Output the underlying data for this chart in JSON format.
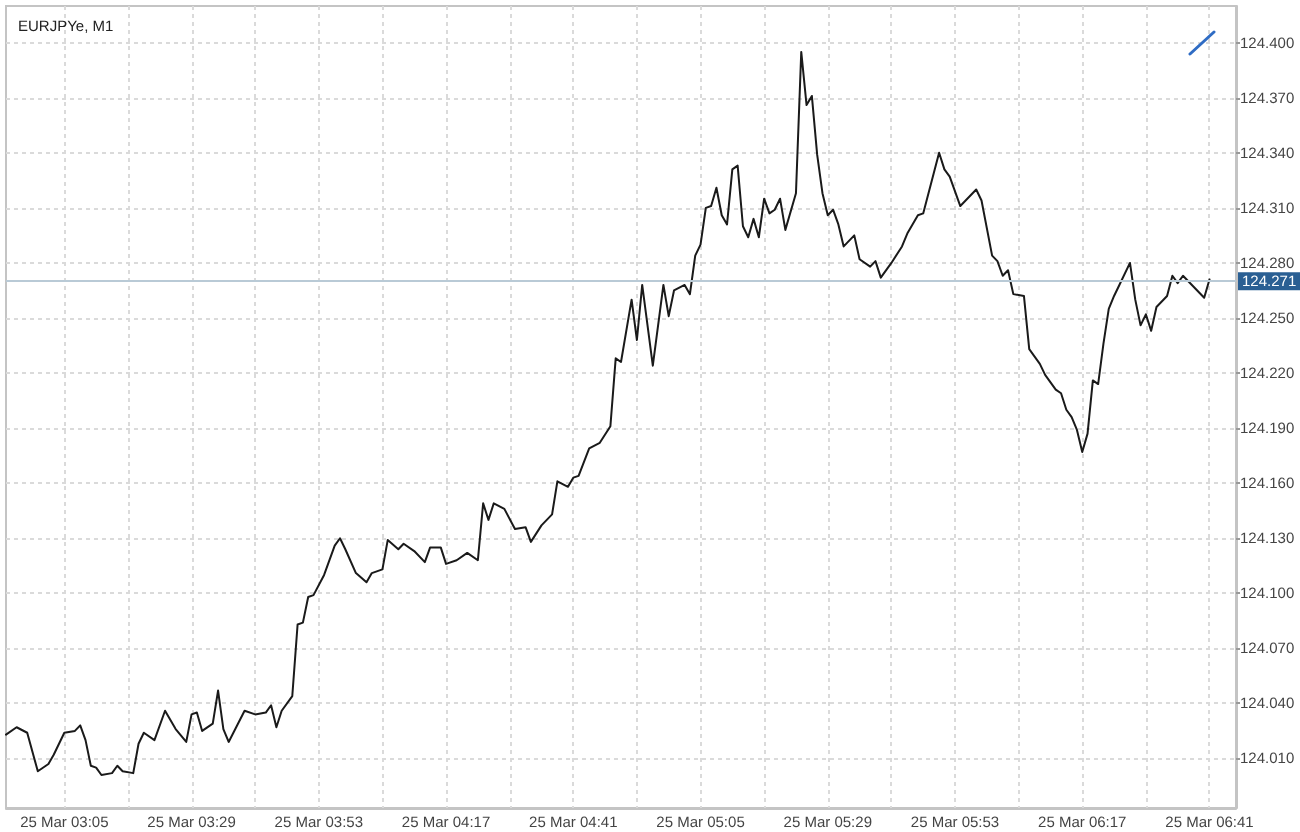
{
  "chart_data": {
    "type": "line",
    "title": "EURJPYe, M1",
    "color": "#1a1a1a",
    "marker": "none",
    "line_style": "solid",
    "grid": true,
    "x": [
      "--03-25T02:54",
      "--03-25T02:56",
      "--03-25T02:58",
      "--03-25T03:00",
      "--03-25T03:02",
      "--03-25T03:03",
      "--03-25T03:05",
      "--03-25T03:07",
      "--03-25T03:08",
      "--03-25T03:09",
      "--03-25T03:10",
      "--03-25T03:11",
      "--03-25T03:12",
      "--03-25T03:14",
      "--03-25T03:15",
      "--03-25T03:16",
      "--03-25T03:18",
      "--03-25T03:19",
      "--03-25T03:20",
      "--03-25T03:22",
      "--03-25T03:24",
      "--03-25T03:26",
      "--03-25T03:28",
      "--03-25T03:29",
      "--03-25T03:30",
      "--03-25T03:31",
      "--03-25T03:33",
      "--03-25T03:34",
      "--03-25T03:35",
      "--03-25T03:36",
      "--03-25T03:39",
      "--03-25T03:41",
      "--03-25T03:43",
      "--03-25T03:44",
      "--03-25T03:45",
      "--03-25T03:46",
      "--03-25T03:48",
      "--03-25T03:49",
      "--03-25T03:50",
      "--03-25T03:51",
      "--03-25T03:52",
      "--03-25T03:54",
      "--03-25T03:56",
      "--03-25T03:57",
      "--03-25T03:58",
      "--03-25T04:00",
      "--03-25T04:02",
      "--03-25T04:03",
      "--03-25T04:05",
      "--03-25T04:06",
      "--03-25T04:08",
      "--03-25T04:09",
      "--03-25T04:11",
      "--03-25T04:13",
      "--03-25T04:14",
      "--03-25T04:16",
      "--03-25T04:17",
      "--03-25T04:19",
      "--03-25T04:21",
      "--03-25T04:23",
      "--03-25T04:24",
      "--03-25T04:25",
      "--03-25T04:26",
      "--03-25T04:28",
      "--03-25T04:30",
      "--03-25T04:32",
      "--03-25T04:33",
      "--03-25T04:35",
      "--03-25T04:37",
      "--03-25T04:38",
      "--03-25T04:40",
      "--03-25T04:41",
      "--03-25T04:42",
      "--03-25T04:44",
      "--03-25T04:46",
      "--03-25T04:48",
      "--03-25T04:49",
      "--03-25T04:50",
      "--03-25T04:52",
      "--03-25T04:53",
      "--03-25T04:54",
      "--03-25T04:56",
      "--03-25T04:58",
      "--03-25T04:59",
      "--03-25T05:00",
      "--03-25T05:02",
      "--03-25T05:03",
      "--03-25T05:04",
      "--03-25T05:05",
      "--03-25T05:06",
      "--03-25T05:07",
      "--03-25T05:08",
      "--03-25T05:09",
      "--03-25T05:10",
      "--03-25T05:11",
      "--03-25T05:12",
      "--03-25T05:13",
      "--03-25T05:14",
      "--03-25T05:15",
      "--03-25T05:16",
      "--03-25T05:17",
      "--03-25T05:18",
      "--03-25T05:19",
      "--03-25T05:20",
      "--03-25T05:21",
      "--03-25T05:23",
      "--03-25T05:24",
      "--03-25T05:25",
      "--03-25T05:26",
      "--03-25T05:27",
      "--03-25T05:28",
      "--03-25T05:29",
      "--03-25T05:30",
      "--03-25T05:31",
      "--03-25T05:32",
      "--03-25T05:34",
      "--03-25T05:35",
      "--03-25T05:37",
      "--03-25T05:38",
      "--03-25T05:39",
      "--03-25T05:41",
      "--03-25T05:43",
      "--03-25T05:44",
      "--03-25T05:46",
      "--03-25T05:47",
      "--03-25T05:49",
      "--03-25T05:50",
      "--03-25T05:51",
      "--03-25T05:52",
      "--03-25T05:54",
      "--03-25T05:55",
      "--03-25T05:57",
      "--03-25T05:58",
      "--03-25T06:00",
      "--03-25T06:01",
      "--03-25T06:02",
      "--03-25T06:03",
      "--03-25T06:04",
      "--03-25T06:06",
      "--03-25T06:07",
      "--03-25T06:09",
      "--03-25T06:10",
      "--03-25T06:12",
      "--03-25T06:13",
      "--03-25T06:14",
      "--03-25T06:15",
      "--03-25T06:16",
      "--03-25T06:17",
      "--03-25T06:18",
      "--03-25T06:19",
      "--03-25T06:20",
      "--03-25T06:21",
      "--03-25T06:22",
      "--03-25T06:23",
      "--03-25T06:24",
      "--03-25T06:26",
      "--03-25T06:27",
      "--03-25T06:28",
      "--03-25T06:29",
      "--03-25T06:30",
      "--03-25T06:31",
      "--03-25T06:33",
      "--03-25T06:34",
      "--03-25T06:35",
      "--03-25T06:36",
      "--03-25T06:40",
      "--03-25T06:41"
    ],
    "values": [
      124.023,
      124.027,
      124.024,
      124.003,
      124.007,
      124.012,
      124.024,
      124.025,
      124.028,
      124.02,
      124.006,
      124.005,
      124.001,
      124.002,
      124.006,
      124.003,
      124.002,
      124.018,
      124.024,
      124.02,
      124.036,
      124.026,
      124.019,
      124.034,
      124.035,
      124.025,
      124.029,
      124.047,
      124.026,
      124.019,
      124.036,
      124.034,
      124.035,
      124.039,
      124.027,
      124.036,
      124.044,
      124.083,
      124.084,
      124.098,
      124.099,
      124.11,
      124.126,
      124.13,
      124.124,
      124.111,
      124.106,
      124.111,
      124.113,
      124.129,
      124.124,
      124.127,
      124.123,
      124.117,
      124.125,
      124.125,
      124.116,
      124.118,
      124.122,
      124.118,
      124.149,
      124.14,
      124.149,
      124.146,
      124.135,
      124.136,
      124.128,
      124.137,
      124.143,
      124.161,
      124.158,
      124.163,
      124.164,
      124.179,
      124.182,
      124.191,
      124.228,
      124.226,
      124.26,
      124.238,
      124.268,
      124.224,
      124.268,
      124.251,
      124.265,
      124.268,
      124.263,
      124.284,
      124.29,
      124.31,
      124.311,
      124.321,
      124.306,
      124.301,
      124.331,
      124.333,
      124.3,
      124.294,
      124.304,
      124.294,
      124.315,
      124.307,
      124.309,
      124.315,
      124.298,
      124.318,
      124.395,
      124.366,
      124.371,
      124.339,
      124.318,
      124.306,
      124.309,
      124.301,
      124.289,
      124.295,
      124.282,
      124.278,
      124.281,
      124.272,
      124.28,
      124.289,
      124.296,
      124.306,
      124.307,
      124.329,
      124.34,
      124.331,
      124.327,
      124.311,
      124.314,
      124.32,
      124.314,
      124.284,
      124.281,
      124.273,
      124.276,
      124.263,
      124.262,
      124.233,
      124.225,
      124.219,
      124.211,
      124.209,
      124.2,
      124.196,
      124.189,
      124.177,
      124.187,
      124.216,
      124.214,
      124.236,
      124.255,
      124.262,
      124.268,
      124.28,
      124.26,
      124.246,
      124.252,
      124.243,
      124.256,
      124.262,
      124.273,
      124.269,
      124.273,
      124.261,
      124.271
    ],
    "xlim": [
      "--03-25T02:54",
      "--03-25T06:46"
    ],
    "xticks": [
      {
        "value": "--03-25T03:05",
        "label": "25 Mar 03:05"
      },
      {
        "value": "--03-25T03:17",
        "label": null
      },
      {
        "value": "--03-25T03:29",
        "label": "25 Mar 03:29"
      },
      {
        "value": "--03-25T03:41",
        "label": null
      },
      {
        "value": "--03-25T03:53",
        "label": "25 Mar 03:53"
      },
      {
        "value": "--03-25T04:05",
        "label": null
      },
      {
        "value": "--03-25T04:17",
        "label": "25 Mar 04:17"
      },
      {
        "value": "--03-25T04:29",
        "label": null
      },
      {
        "value": "--03-25T04:41",
        "label": "25 Mar 04:41"
      },
      {
        "value": "--03-25T04:53",
        "label": null
      },
      {
        "value": "--03-25T05:05",
        "label": "25 Mar 05:05"
      },
      {
        "value": "--03-25T05:17",
        "label": null
      },
      {
        "value": "--03-25T05:29",
        "label": "25 Mar 05:29"
      },
      {
        "value": "--03-25T05:41",
        "label": null
      },
      {
        "value": "--03-25T05:53",
        "label": "25 Mar 05:53"
      },
      {
        "value": "--03-25T06:05",
        "label": null
      },
      {
        "value": "--03-25T06:17",
        "label": "25 Mar 06:17"
      },
      {
        "value": "--03-25T06:29",
        "label": null
      },
      {
        "value": "--03-25T06:41",
        "label": "25 Mar 06:41"
      }
    ],
    "ylim": [
      123.983,
      124.42
    ],
    "yticks": [
      {
        "value": 124.01,
        "label": "124.010"
      },
      {
        "value": 124.04,
        "label": "124.040"
      },
      {
        "value": 124.07,
        "label": "124.070"
      },
      {
        "value": 124.1,
        "label": "124.100"
      },
      {
        "value": 124.13,
        "label": "124.130"
      },
      {
        "value": 124.16,
        "label": "124.160"
      },
      {
        "value": 124.19,
        "label": "124.190"
      },
      {
        "value": 124.22,
        "label": "124.220"
      },
      {
        "value": 124.25,
        "label": "124.250"
      },
      {
        "value": 124.28,
        "label": "124.280"
      },
      {
        "value": 124.31,
        "label": "124.310"
      },
      {
        "value": 124.34,
        "label": "124.340"
      },
      {
        "value": 124.37,
        "label": "124.370"
      },
      {
        "value": 124.4,
        "label": "124.400"
      }
    ],
    "ref_lines": [
      {
        "axis": "y",
        "value": 124.271,
        "label": "124.271",
        "color": "#b9cad6"
      }
    ]
  }
}
